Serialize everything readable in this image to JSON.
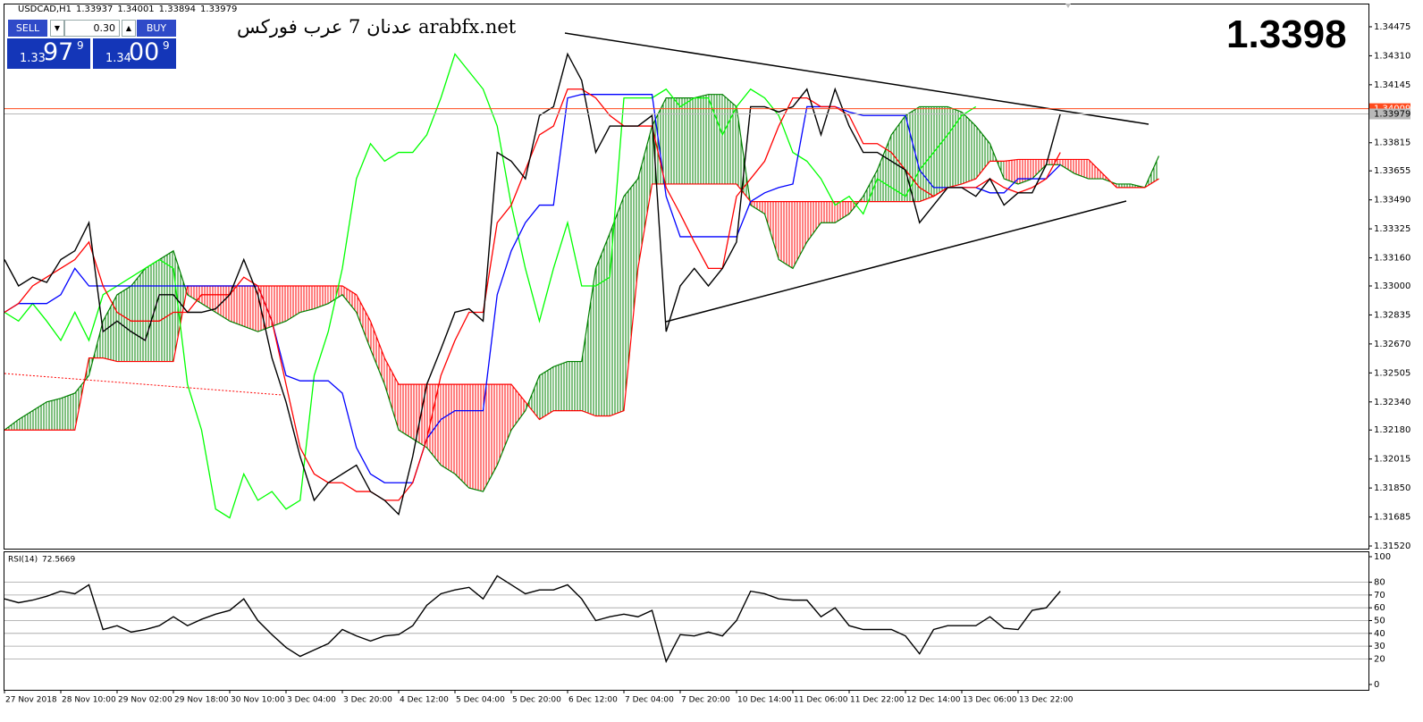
{
  "ui": {
    "symbol": "USDCAD,H1",
    "ohlc": [
      1.33937,
      1.34001,
      1.33894,
      1.33979
    ],
    "sell": "SELL",
    "buy": "BUY",
    "lot": "0.30",
    "sell_price": {
      "big": "1.33",
      "main": "97",
      "pip": "9"
    },
    "buy_price": {
      "big": "1.34",
      "main": "00",
      "pip": "9"
    },
    "watermark_site": "arabfx.net",
    "watermark_name": "عدنان 7 عرب فوركس",
    "last_price": 1.3398
  },
  "chart_data": [
    {
      "type": "line",
      "ylim": [
        1.31515,
        1.34602
      ],
      "yticks": [
        1.34475,
        {
          "value": 1.3431,
          "label": "1.34310"
        },
        1.34145,
        1.33815,
        1.33655,
        {
          "value": 1.3349,
          "label": "1.33490"
        },
        1.33325,
        {
          "value": 1.3316,
          "label": "1.33160"
        },
        {
          "value": 1.33,
          "label": "1.33000"
        },
        1.32835,
        {
          "value": 1.3267,
          "label": "1.32670"
        },
        1.32505,
        {
          "value": 1.3234,
          "label": "1.32340"
        },
        {
          "value": 1.3218,
          "label": "1.32180"
        },
        1.32015,
        {
          "value": 1.3185,
          "label": "1.31850"
        },
        1.31685,
        {
          "value": 1.3152,
          "label": "1.31520"
        }
      ],
      "price_lines": [
        1.34009,
        1.33979
      ],
      "price_line_colors": [
        "#ff4a1c",
        "#b8b8b8"
      ],
      "categories": [
        "27 Nov 2018",
        null,
        null,
        null,
        "28 Nov 10:00",
        null,
        null,
        null,
        "29 Nov 02:00",
        null,
        null,
        null,
        "29 Nov 18:00",
        null,
        null,
        null,
        "30 Nov 10:00",
        null,
        null,
        null,
        "3 Dec 04:00",
        null,
        null,
        null,
        "3 Dec 20:00",
        null,
        null,
        null,
        "4 Dec 12:00",
        null,
        null,
        null,
        "5 Dec 04:00",
        null,
        null,
        null,
        "5 Dec 20:00",
        null,
        null,
        null,
        "6 Dec 12:00",
        null,
        null,
        null,
        "7 Dec 04:00",
        null,
        null,
        null,
        "7 Dec 20:00",
        null,
        null,
        null,
        "10 Dec 14:00",
        null,
        null,
        null,
        "11 Dec 06:00",
        null,
        null,
        null,
        "11 Dec 22:00",
        null,
        null,
        null,
        "12 Dec 14:00",
        null,
        null,
        null,
        "13 Dec 06:00",
        null,
        null,
        null,
        "13 Dec 22:00",
        null,
        null,
        null,
        null,
        null,
        null,
        null,
        null,
        null,
        null
      ],
      "cloud": {
        "up_color": "#008000",
        "down_color": "#ff0000",
        "span_a": [
          1.3218,
          1.3224,
          1.3229,
          1.3234,
          1.3236,
          1.3239,
          1.3249,
          1.328,
          1.3295,
          1.33,
          1.331,
          1.3315,
          1.332,
          1.3295,
          1.329,
          1.3285,
          1.328,
          1.3277,
          1.3274,
          1.3277,
          1.328,
          1.3285,
          1.3287,
          1.329,
          1.3295,
          1.3285,
          1.3264,
          1.3244,
          1.3218,
          1.3213,
          1.3208,
          1.3198,
          1.3193,
          1.3185,
          1.3183,
          1.3198,
          1.3218,
          1.3229,
          1.3249,
          1.3254,
          1.3257,
          1.3257,
          1.331,
          1.333,
          1.3351,
          1.3361,
          1.3391,
          1.3407,
          1.3407,
          1.3407,
          1.3409,
          1.3409,
          1.3402,
          1.3346,
          1.3341,
          1.3315,
          1.331,
          1.3325,
          1.3336,
          1.3336,
          1.3341,
          1.3351,
          1.3366,
          1.3386,
          1.3397,
          1.3402,
          1.3402,
          1.3402,
          1.3399,
          1.3391,
          1.3381,
          1.3361,
          1.3358,
          1.3361,
          1.3369,
          1.3369,
          1.3364,
          1.3361,
          1.3361,
          1.3358,
          1.3358,
          1.3356,
          1.3374
        ],
        "span_b": [
          1.3218,
          1.3218,
          1.3218,
          1.3218,
          1.3218,
          1.3218,
          1.3259,
          1.3259,
          1.3257,
          1.3257,
          1.3257,
          1.3257,
          1.3257,
          1.33,
          1.33,
          1.33,
          1.33,
          1.33,
          1.33,
          1.33,
          1.33,
          1.33,
          1.33,
          1.33,
          1.33,
          1.3295,
          1.328,
          1.3259,
          1.3244,
          1.3244,
          1.3244,
          1.3244,
          1.3244,
          1.3244,
          1.3244,
          1.3244,
          1.3244,
          1.3234,
          1.3224,
          1.3229,
          1.3229,
          1.3229,
          1.3226,
          1.3226,
          1.3229,
          1.331,
          1.3358,
          1.3358,
          1.3358,
          1.3358,
          1.3358,
          1.3358,
          1.3358,
          1.3348,
          1.3348,
          1.3348,
          1.3348,
          1.3348,
          1.3348,
          1.3348,
          1.3348,
          1.3348,
          1.3348,
          1.3348,
          1.3348,
          1.3348,
          1.3351,
          1.3356,
          1.3358,
          1.3361,
          1.3371,
          1.3371,
          1.3372,
          1.3372,
          1.3372,
          1.3372,
          1.3372,
          1.3372,
          1.3364,
          1.3356,
          1.3356,
          1.3356,
          1.3361
        ]
      },
      "series": [
        {
          "color": "#00ff00",
          "values": [
            1.3285,
            1.328,
            1.329,
            1.328,
            1.3269,
            1.3285,
            1.3269,
            1.3295,
            1.33,
            1.3305,
            1.331,
            1.3315,
            1.331,
            1.3244,
            1.3218,
            1.3173,
            1.3168,
            1.3193,
            1.3178,
            1.3183,
            1.3173,
            1.3178,
            1.3249,
            1.3274,
            1.331,
            1.3361,
            1.3381,
            1.3371,
            1.3376,
            1.3376,
            1.3386,
            1.3407,
            1.3432,
            1.3422,
            1.3412,
            1.3391,
            1.3346,
            1.331,
            1.328,
            1.331,
            1.3336,
            1.33,
            1.33,
            1.3305,
            1.3407,
            1.3407,
            1.3407,
            1.3412,
            1.3402,
            1.3407,
            1.3407,
            1.3386,
            1.3402,
            1.3412,
            1.3407,
            1.3397,
            1.3376,
            1.3371,
            1.3361,
            1.3346,
            1.3351,
            1.3341,
            1.3361,
            1.3356,
            1.3351,
            1.3366,
            1.3376,
            1.3386,
            1.3397,
            1.3402,
            null,
            null,
            null,
            null,
            null,
            null,
            null,
            null,
            null,
            null,
            null,
            null,
            null
          ]
        },
        {
          "color": "#0000ff",
          "values": [
            1.3285,
            1.329,
            1.329,
            1.329,
            1.3295,
            1.331,
            1.33,
            1.33,
            1.33,
            1.33,
            1.33,
            1.33,
            1.33,
            1.33,
            1.33,
            1.33,
            1.33,
            1.33,
            1.33,
            1.328,
            1.3249,
            1.3246,
            1.3246,
            1.3246,
            1.3239,
            1.3208,
            1.3193,
            1.3188,
            1.3188,
            1.3188,
            1.3213,
            1.3224,
            1.3229,
            1.3229,
            1.3229,
            1.3295,
            1.332,
            1.3336,
            1.3346,
            1.3346,
            1.3407,
            1.3409,
            1.3409,
            1.3409,
            1.3409,
            1.3409,
            1.3409,
            1.3351,
            1.3328,
            1.3328,
            1.3328,
            1.3328,
            1.3328,
            1.3348,
            1.3353,
            1.3356,
            1.3358,
            1.3402,
            1.3402,
            1.3402,
            1.3399,
            1.3397,
            1.3397,
            1.3397,
            1.3397,
            1.3366,
            1.3356,
            1.3356,
            1.3356,
            1.3356,
            1.3353,
            1.3353,
            1.3361,
            1.3361,
            1.3361,
            1.3369,
            null,
            null,
            null,
            null,
            null,
            null,
            null
          ]
        },
        {
          "color": "#ff0000",
          "values": [
            1.3285,
            1.329,
            1.33,
            1.3305,
            1.331,
            1.3315,
            1.3325,
            1.33,
            1.3285,
            1.328,
            1.328,
            1.328,
            1.3285,
            1.3285,
            1.3295,
            1.3295,
            1.3295,
            1.3305,
            1.33,
            1.328,
            1.3244,
            1.3208,
            1.3193,
            1.3188,
            1.3188,
            1.3183,
            1.3183,
            1.3178,
            1.3178,
            1.3188,
            1.3213,
            1.3249,
            1.3269,
            1.3285,
            1.3285,
            1.3336,
            1.3346,
            1.3366,
            1.3386,
            1.3391,
            1.3412,
            1.3412,
            1.3407,
            1.3397,
            1.3391,
            1.3391,
            1.3391,
            1.3356,
            1.3341,
            1.3325,
            1.331,
            1.331,
            1.3351,
            1.3361,
            1.3371,
            1.3391,
            1.3407,
            1.3407,
            1.3402,
            1.3402,
            1.3397,
            1.3381,
            1.3381,
            1.3376,
            1.3366,
            1.3356,
            1.3351,
            1.3356,
            1.3356,
            1.3356,
            1.3361,
            1.3356,
            1.3353,
            1.3356,
            1.3361,
            1.3376,
            null,
            null,
            null,
            null,
            null,
            null,
            null
          ]
        },
        {
          "color": "#000000",
          "values": [
            1.3315,
            1.33,
            1.3305,
            1.3302,
            1.3315,
            1.332,
            1.3336,
            1.3274,
            1.328,
            1.3274,
            1.3269,
            1.3295,
            1.3295,
            1.3285,
            1.3285,
            1.3287,
            1.3295,
            1.3315,
            1.3295,
            1.3259,
            1.3234,
            1.3203,
            1.3178,
            1.3188,
            1.3193,
            1.3198,
            1.3183,
            1.3178,
            1.317,
            1.3203,
            1.3244,
            1.3264,
            1.3285,
            1.3287,
            1.328,
            1.3376,
            1.3371,
            1.3361,
            1.3397,
            1.3402,
            1.3432,
            1.3417,
            1.3376,
            1.3391,
            1.3391,
            1.3391,
            1.3397,
            1.3274,
            1.33,
            1.331,
            1.33,
            1.331,
            1.3325,
            1.3402,
            1.3402,
            1.3399,
            1.3402,
            1.3412,
            1.3386,
            1.3412,
            1.3391,
            1.3376,
            1.3376,
            1.3371,
            1.3366,
            1.3336,
            1.3346,
            1.3356,
            1.3356,
            1.3351,
            1.3361,
            1.3346,
            1.3353,
            1.3353,
            1.3369,
            1.3398,
            null,
            null,
            null,
            null,
            null,
            null,
            null
          ]
        }
      ]
    },
    {
      "type": "line",
      "title": "RSI(14)",
      "last_value": 72.5669,
      "ylim": [
        0,
        100
      ],
      "yticks": [
        100,
        80,
        70,
        60,
        50,
        40,
        30,
        20,
        0
      ],
      "grid": true,
      "color": "#000000",
      "values": [
        67,
        64,
        66,
        69,
        73,
        71,
        78,
        43,
        46,
        41,
        43,
        46,
        53,
        46,
        51,
        55,
        58,
        67,
        50,
        39,
        29,
        22,
        27,
        32,
        43,
        38,
        34,
        38,
        39,
        46,
        62,
        71,
        74,
        76,
        67,
        85,
        78,
        71,
        74,
        74,
        78,
        67,
        50,
        53,
        55,
        53,
        58,
        18,
        39,
        38,
        41,
        38,
        50,
        73,
        71,
        67,
        66,
        66,
        53,
        60,
        46,
        43,
        43,
        43,
        38,
        24,
        43,
        46,
        46,
        46,
        53,
        44,
        43,
        58,
        60,
        73,
        null,
        null,
        null,
        null,
        null,
        null,
        null
      ]
    }
  ]
}
